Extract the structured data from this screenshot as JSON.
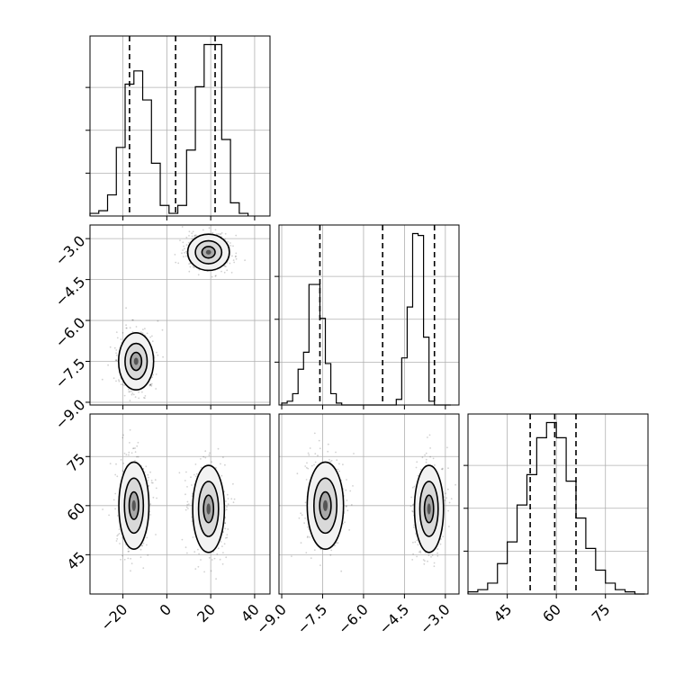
{
  "chart_data": {
    "type": "corner",
    "parameters": [
      {
        "ticks": [
          -20,
          0,
          20,
          40
        ],
        "tick_labels": [
          "−20",
          "0",
          "20",
          "40"
        ],
        "range": [
          -35,
          47
        ]
      },
      {
        "ticks": [
          -9.0,
          -7.5,
          -6.0,
          -4.5,
          -3.0
        ],
        "tick_labels": [
          "−9.0",
          "−7.5",
          "−6.0",
          "−4.5",
          "−3.0"
        ],
        "range": [
          -9.1,
          -2.5
        ]
      },
      {
        "ticks": [
          45,
          60,
          75
        ],
        "tick_labels": [
          "45",
          "60",
          "75"
        ],
        "range": [
          33,
          88
        ]
      }
    ],
    "histograms": [
      {
        "parameter": 0,
        "edges": [
          -35,
          -31,
          -27,
          -23,
          -19,
          -15,
          -11,
          -7,
          -3,
          1,
          5,
          9,
          13,
          17,
          21,
          25,
          29,
          33,
          37
        ],
        "counts": [
          1,
          2,
          8,
          26,
          50,
          55,
          44,
          20,
          4,
          1,
          4,
          25,
          49,
          65,
          65,
          29,
          5,
          1
        ],
        "quantiles": [
          -17,
          4,
          22
        ]
      },
      {
        "parameter": 1,
        "edges": [
          -9.0,
          -8.8,
          -8.6,
          -8.4,
          -8.2,
          -8.0,
          -7.8,
          -7.6,
          -7.4,
          -7.2,
          -7.0,
          -6.8,
          -6.6,
          -6.4,
          -6.2,
          -6.0,
          -5.8,
          -5.6,
          -5.4,
          -5.2,
          -5.0,
          -4.8,
          -4.6,
          -4.4,
          -4.2,
          -4.0,
          -3.8,
          -3.6,
          -3.4,
          -3.2,
          -3.0,
          -2.8
        ],
        "counts": [
          1,
          2,
          6,
          19,
          28,
          64,
          64,
          46,
          22,
          6,
          1,
          0,
          0,
          0,
          0,
          0,
          0,
          0,
          0,
          0,
          0,
          3,
          25,
          52,
          91,
          90,
          36,
          2,
          0,
          0,
          0
        ],
        "quantiles": [
          -7.6,
          -5.3,
          -3.4
        ]
      },
      {
        "parameter": 2,
        "edges": [
          33,
          36,
          39,
          42,
          45,
          48,
          51,
          54,
          57,
          60,
          63,
          66,
          69,
          72,
          75,
          78,
          81,
          84,
          87
        ],
        "counts": [
          1,
          2,
          5,
          14,
          24,
          41,
          55,
          72,
          79,
          72,
          52,
          35,
          21,
          11,
          5,
          2,
          1,
          0
        ],
        "quantiles": [
          52,
          59.5,
          66
        ]
      }
    ],
    "panels_2d": [
      {
        "x_param": 0,
        "y_param": 1,
        "modes": [
          {
            "x": -14,
            "y": -7.5,
            "sx": 4.2,
            "sy": 0.55
          },
          {
            "x": 19,
            "y": -3.5,
            "sx": 5,
            "sy": 0.35
          }
        ]
      },
      {
        "x_param": 0,
        "y_param": 2,
        "modes": [
          {
            "x": -15,
            "y": 60,
            "sx": 3.6,
            "sy": 7
          },
          {
            "x": 19,
            "y": 59,
            "sx": 3.8,
            "sy": 7
          }
        ]
      },
      {
        "x_param": 1,
        "y_param": 2,
        "modes": [
          {
            "x": -7.4,
            "y": 60,
            "sx": 0.35,
            "sy": 7
          },
          {
            "x": -3.6,
            "y": 59,
            "sx": 0.28,
            "sy": 7
          }
        ]
      }
    ],
    "contour_scales": [
      0.6,
      1.2,
      1.9
    ],
    "grid": true
  }
}
